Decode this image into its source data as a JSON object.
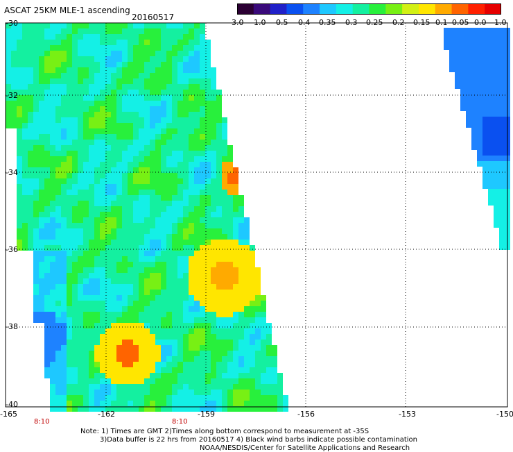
{
  "header": {
    "title": "ASCAT 25KM MLE-1 ascending",
    "date": "20160517"
  },
  "colorbar": {
    "labels": [
      "-3.0",
      "-1.0",
      "-0.5",
      "-0.4",
      "-0.35",
      "-0.3",
      "-0.25",
      "-0.2",
      "-0.15",
      "-0.1",
      "-0.05",
      "0.0",
      "1.0"
    ],
    "colors": [
      "#2b0033",
      "#3a0a7a",
      "#2020c8",
      "#0a50f0",
      "#1e82ff",
      "#1ec8ff",
      "#14f0e6",
      "#14f0a0",
      "#28f03c",
      "#78f014",
      "#d2f014",
      "#ffe600",
      "#ffaa00",
      "#ff6400",
      "#ff2000",
      "#e60000"
    ]
  },
  "axes": {
    "lat_labels": [
      "-30",
      "-32",
      "-34",
      "-36",
      "-38",
      "-40"
    ],
    "lon_labels": [
      "-165",
      "-162",
      "-159",
      "-156",
      "-153",
      "-150"
    ],
    "time_labels": [
      "8:10",
      "8:10"
    ]
  },
  "notes": {
    "line1": "Note: 1) Times are GMT 2)Times along bottom correspond to measurement at -35S",
    "line2": "3)Data buffer is 22 hrs from 20160517 4) Black wind barbs indicate possible contamination",
    "line3": "NOAA/NESDIS/Center for Satellite Applications and Research"
  }
}
